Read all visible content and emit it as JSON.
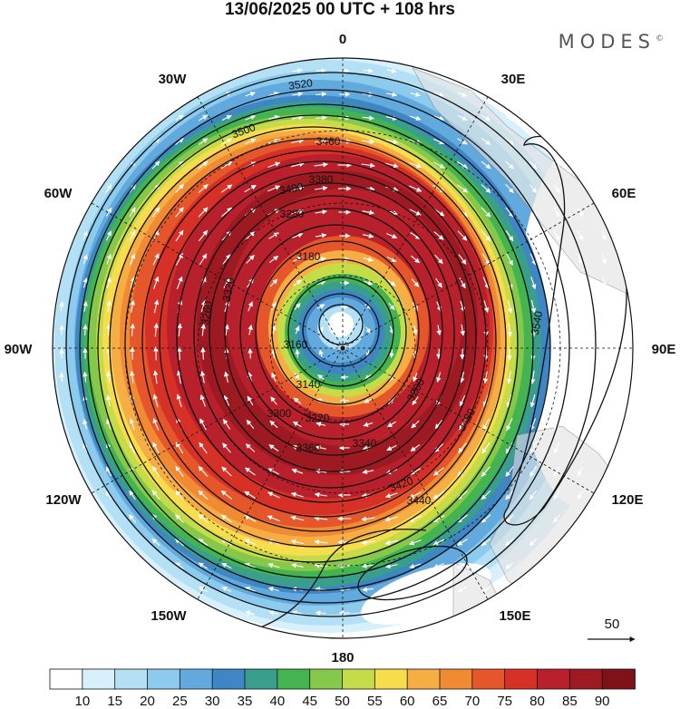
{
  "header": {
    "title": "13/06/2025  00 UTC  + 108 hrs",
    "brand": "MODES",
    "brand_mark": "©"
  },
  "map": {
    "projection": "polar stereographic (south pole)",
    "longitude_labels": [
      {
        "text": "0",
        "lon": 0
      },
      {
        "text": "30E",
        "lon": 30
      },
      {
        "text": "60E",
        "lon": 60
      },
      {
        "text": "90E",
        "lon": 90
      },
      {
        "text": "120E",
        "lon": 120
      },
      {
        "text": "150E",
        "lon": 150
      },
      {
        "text": "180",
        "lon": 180
      },
      {
        "text": "150W",
        "lon": -150
      },
      {
        "text": "120W",
        "lon": -120
      },
      {
        "text": "90W",
        "lon": -90
      },
      {
        "text": "60W",
        "lon": -60
      },
      {
        "text": "30W",
        "lon": -30
      }
    ],
    "contour_labels": [
      "3520",
      "3500",
      "3460",
      "3400",
      "3380",
      "3280",
      "3180",
      "3160",
      "3140",
      "3200",
      "3220",
      "3300",
      "3340",
      "3360",
      "3420",
      "3440",
      "3480",
      "3540",
      "3260",
      "3320"
    ],
    "wind_reference": "50"
  },
  "colorbar": {
    "labels": [
      "10",
      "15",
      "20",
      "25",
      "30",
      "35",
      "40",
      "45",
      "50",
      "55",
      "60",
      "65",
      "70",
      "75",
      "80",
      "85",
      "90"
    ],
    "colors": [
      "#ffffff",
      "#d8f0fb",
      "#b4e0f6",
      "#8ccaee",
      "#62a9de",
      "#3e86c4",
      "#3a9e8c",
      "#43b450",
      "#86c84a",
      "#c6db48",
      "#f7dc4e",
      "#f6ad44",
      "#f08a33",
      "#e5572a",
      "#d73027",
      "#b8202b",
      "#9e1a23",
      "#7f1219"
    ]
  },
  "colors": {
    "land": "#e2e2e2",
    "contour": "#111111",
    "vector": "#ffffff"
  }
}
